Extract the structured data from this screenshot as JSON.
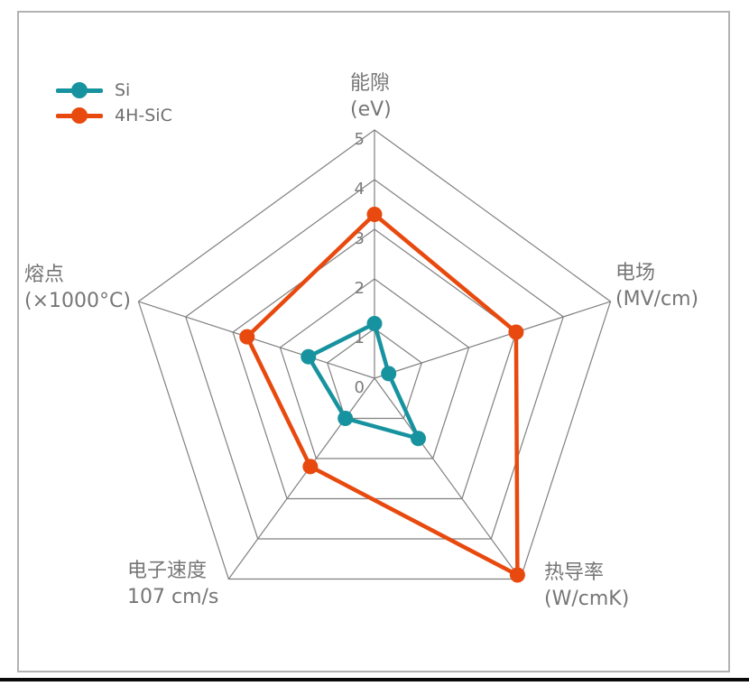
{
  "chart_data": {
    "type": "radar",
    "title": "",
    "scale": {
      "min": 0,
      "max": 5,
      "ticks": [
        0,
        1,
        2,
        3,
        4,
        5
      ]
    },
    "grid": {
      "shape": "pentagon",
      "rings": 5,
      "color": "#808080"
    },
    "legend_position": "top-left",
    "categories": [
      "能隙 (eV)",
      "电场 (MV/cm)",
      "热导率 (W/cmK)",
      "电子速度 107 cm/s",
      "熔点 (×1000°C)"
    ],
    "axis_labels": [
      {
        "line1": "能隙",
        "line2": "(eV)"
      },
      {
        "line1": "电场",
        "line2": "(MV/cm)"
      },
      {
        "line1": "热导率",
        "line2": "(W/cmK)"
      },
      {
        "line1": "电子速度",
        "line2": "107 cm/s"
      },
      {
        "line1": "熔点",
        "line2": "(×1000°C)"
      }
    ],
    "series": [
      {
        "name": "Si",
        "color": "#17939f",
        "values": [
          1.1,
          0.3,
          1.5,
          1.0,
          1.4
        ]
      },
      {
        "name": "4H-SiC",
        "color": "#e8490e",
        "values": [
          3.3,
          3.0,
          4.9,
          2.2,
          2.7
        ]
      }
    ]
  },
  "colors": {
    "background": "#ffffff",
    "panel_border": "#b3b3b3",
    "grid_line": "#808080",
    "tick_label": "#7b7b7b",
    "axis_label": "#767676",
    "legend_label": "#6f6f6f",
    "bottom_bar": "#0a0a0a"
  }
}
